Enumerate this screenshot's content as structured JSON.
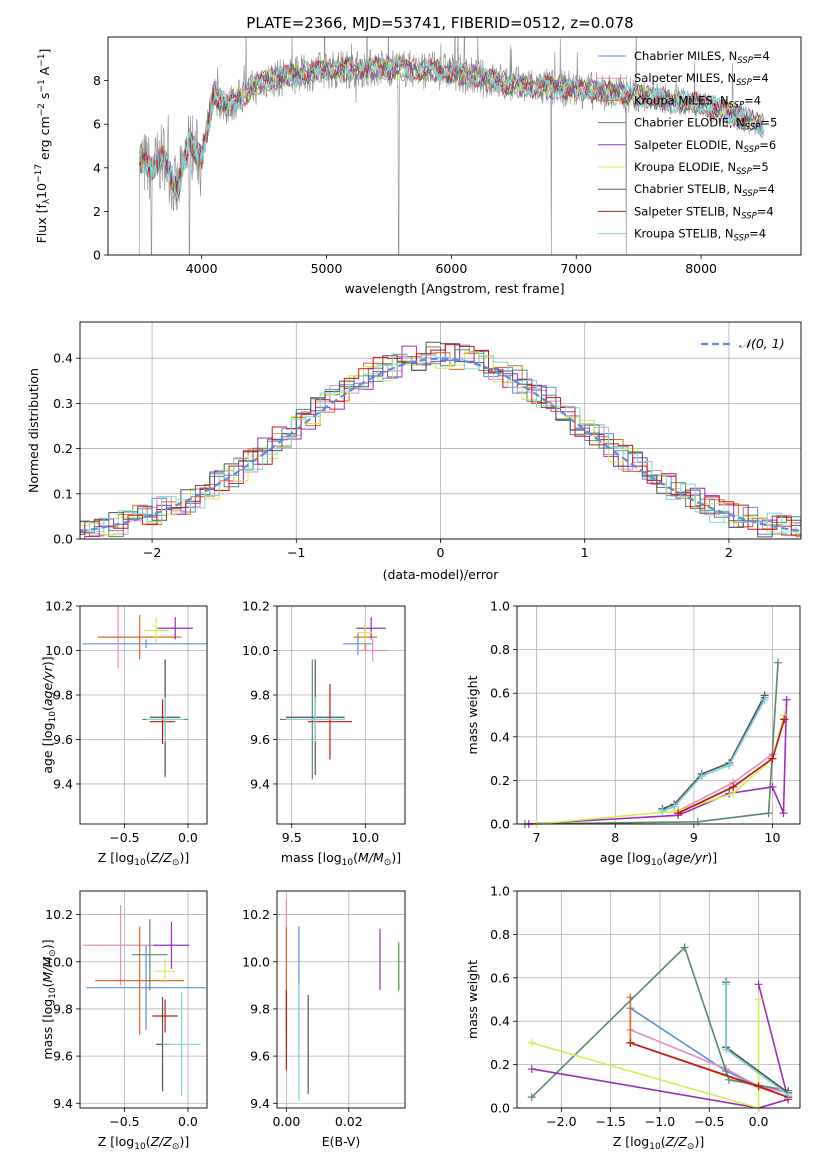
{
  "title": "PLATE=2366, MJD=53741, FIBERID=0512, z=0.078",
  "chart_data": [
    {
      "id": "spectrum",
      "type": "line",
      "title": "PLATE=2366, MJD=53741, FIBERID=0512, z=0.078",
      "xlabel": "wavelength [Angstrom, rest frame]",
      "ylabel": "Flux [f_λ 10^-17 erg cm^-2 s^-1 A^-1]",
      "xlim": [
        3250,
        8800
      ],
      "ylim": [
        0,
        10
      ],
      "xticks": [
        4000,
        5000,
        6000,
        7000,
        8000
      ],
      "yticks": [
        0,
        2,
        4,
        6,
        8
      ],
      "grid": false,
      "legend_position": "top-right",
      "series": [
        {
          "name": "Chabrier MILES, N_SSP=4",
          "color": "#5b8ee0"
        },
        {
          "name": "Salpeter MILES, N_SSP=4",
          "color": "#e08ec0"
        },
        {
          "name": "Kroupa MILES, N_SSP=4",
          "color": "#e06a20"
        },
        {
          "name": "Chabrier ELODIE, N_SSP=5",
          "color": "#5a8a68"
        },
        {
          "name": "Salpeter ELODIE, N_SSP=6",
          "color": "#9a30b8"
        },
        {
          "name": "Kroupa ELODIE, N_SSP=5",
          "color": "#d4ec50"
        },
        {
          "name": "Chabrier STELIB, N_SSP=4",
          "color": "#555555"
        },
        {
          "name": "Salpeter STELIB, N_SSP=4",
          "color": "#c01818"
        },
        {
          "name": "Kroupa STELIB, N_SSP=4",
          "color": "#7fd6d8"
        }
      ],
      "data_envelope": {
        "x": [
          3500,
          3600,
          3700,
          3800,
          3900,
          4000,
          4100,
          4200,
          4500,
          5000,
          5500,
          6000,
          6500,
          7000,
          7400,
          8000,
          8500
        ],
        "y": [
          4.4,
          3.9,
          4.6,
          2.8,
          5.2,
          4.4,
          7.4,
          6.8,
          8.0,
          8.5,
          8.6,
          8.4,
          7.8,
          7.6,
          7.4,
          6.9,
          6.0
        ]
      }
    },
    {
      "id": "residuals",
      "type": "line",
      "xlabel": "(data-model)/error",
      "ylabel": "Normed distribution",
      "xlim": [
        -2.5,
        2.5
      ],
      "ylim": [
        0,
        0.48
      ],
      "xticks": [
        -2,
        -1,
        0,
        1,
        2
      ],
      "yticks": [
        0.0,
        0.1,
        0.2,
        0.3,
        0.4
      ],
      "grid": true,
      "legend_position": "top-right",
      "reference": {
        "name": "𝒩(0, 1)",
        "color": "#5b8ee0"
      }
    },
    {
      "id": "age_vs_Z",
      "type": "scatter",
      "xlabel": "Z [log10(Z/Z⊙)]",
      "ylabel": "age [log10(age/yr)]",
      "xlim": [
        -0.85,
        0.15
      ],
      "ylim": [
        9.22,
        10.2
      ],
      "xticks": [
        -0.5,
        0.0
      ],
      "yticks": [
        9.4,
        9.6,
        9.8,
        10.0,
        10.2
      ],
      "grid": true,
      "points": [
        {
          "x": -0.33,
          "y": 10.03,
          "xerr": 0.5,
          "yerr": 0.02,
          "color": "#5b8ee0"
        },
        {
          "x": -0.55,
          "y": 10.06,
          "xerr": 0.05,
          "yerr": 0.14,
          "color": "#e08ec0"
        },
        {
          "x": -0.38,
          "y": 10.06,
          "xerr": 0.33,
          "yerr": 0.1,
          "color": "#e06a20"
        },
        {
          "x": -0.18,
          "y": 9.69,
          "xerr": 0.18,
          "yerr": 0.26,
          "color": "#5a8a68"
        },
        {
          "x": -0.1,
          "y": 10.1,
          "xerr": 0.14,
          "yerr": 0.05,
          "color": "#9a30b8"
        },
        {
          "x": -0.25,
          "y": 10.09,
          "xerr": 0.1,
          "yerr": 0.06,
          "color": "#d4ec50"
        },
        {
          "x": -0.18,
          "y": 9.7,
          "xerr": 0.12,
          "yerr": 0.26,
          "color": "#555555"
        },
        {
          "x": -0.2,
          "y": 9.68,
          "xerr": 0.1,
          "yerr": 0.1,
          "color": "#c01818"
        },
        {
          "x": -0.18,
          "y": 9.69,
          "xerr": 0.15,
          "yerr": 0.1,
          "color": "#7fd6d8"
        }
      ]
    },
    {
      "id": "age_vs_mass",
      "type": "scatter",
      "xlabel": "mass [log10(M/M⊙)]",
      "ylabel": "",
      "xlim": [
        9.4,
        10.27
      ],
      "ylim": [
        9.22,
        10.2
      ],
      "xticks": [
        9.5,
        10.0
      ],
      "yticks": [
        9.4,
        9.6,
        9.8,
        10.0,
        10.2
      ],
      "grid": true,
      "points": [
        {
          "x": 9.95,
          "y": 10.03,
          "xerr": 0.1,
          "yerr": 0.05,
          "color": "#5b8ee0"
        },
        {
          "x": 10.05,
          "y": 10.0,
          "xerr": 0.1,
          "yerr": 0.05,
          "color": "#e08ec0"
        },
        {
          "x": 10.0,
          "y": 10.06,
          "xerr": 0.08,
          "yerr": 0.06,
          "color": "#e06a20"
        },
        {
          "x": 9.64,
          "y": 9.69,
          "xerr": 0.22,
          "yerr": 0.27,
          "color": "#5a8a68"
        },
        {
          "x": 10.04,
          "y": 10.1,
          "xerr": 0.1,
          "yerr": 0.05,
          "color": "#9a30b8"
        },
        {
          "x": 10.0,
          "y": 10.08,
          "xerr": 0.05,
          "yerr": 0.05,
          "color": "#d4ec50"
        },
        {
          "x": 9.66,
          "y": 9.7,
          "xerr": 0.2,
          "yerr": 0.26,
          "color": "#555555"
        },
        {
          "x": 9.76,
          "y": 9.68,
          "xerr": 0.15,
          "yerr": 0.17,
          "color": "#c01818"
        },
        {
          "x": 9.66,
          "y": 9.69,
          "xerr": 0.2,
          "yerr": 0.1,
          "color": "#7fd6d8"
        }
      ]
    },
    {
      "id": "massweight_vs_age",
      "type": "line",
      "xlabel": "age [log10(age/yr)]",
      "ylabel": "mass weight",
      "xlim": [
        6.75,
        10.35
      ],
      "ylim": [
        0,
        1
      ],
      "xticks": [
        7,
        8,
        9,
        10
      ],
      "yticks": [
        0.0,
        0.2,
        0.4,
        0.6,
        0.8,
        1.0
      ],
      "grid": true,
      "series": [
        {
          "color": "#5b8ee0",
          "x": [
            8.6,
            8.75,
            9.1,
            9.45,
            9.9
          ],
          "y": [
            0.06,
            0.08,
            0.22,
            0.27,
            0.58
          ]
        },
        {
          "color": "#e08ec0",
          "x": [
            8.8,
            9.5,
            10.0
          ],
          "y": [
            0.06,
            0.19,
            0.32
          ]
        },
        {
          "color": "#e06a20",
          "x": [
            8.8,
            9.5,
            10.0,
            10.15
          ],
          "y": [
            0.05,
            0.17,
            0.3,
            0.48
          ]
        },
        {
          "color": "#5a8a68",
          "x": [
            6.85,
            9.05,
            9.95,
            10.07
          ],
          "y": [
            0.0,
            0.01,
            0.05,
            0.74
          ]
        },
        {
          "color": "#9a30b8",
          "x": [
            6.9,
            8.8,
            9.45,
            10.0,
            10.14,
            10.18
          ],
          "y": [
            0.0,
            0.04,
            0.14,
            0.17,
            0.05,
            0.57
          ]
        },
        {
          "color": "#d4ec50",
          "x": [
            7.0,
            8.8,
            9.5,
            10.0,
            10.15
          ],
          "y": [
            0.0,
            0.06,
            0.14,
            0.3,
            0.5
          ]
        },
        {
          "color": "#555555",
          "x": [
            8.6,
            8.75,
            9.1,
            9.45,
            9.9
          ],
          "y": [
            0.07,
            0.09,
            0.23,
            0.28,
            0.59
          ]
        },
        {
          "color": "#c01818",
          "x": [
            8.8,
            9.5,
            10.0,
            10.15
          ],
          "y": [
            0.05,
            0.17,
            0.3,
            0.48
          ]
        },
        {
          "color": "#7fd6d8",
          "x": [
            8.6,
            8.75,
            9.1,
            9.45,
            9.9
          ],
          "y": [
            0.06,
            0.08,
            0.22,
            0.27,
            0.57
          ]
        }
      ]
    },
    {
      "id": "mass_vs_Z",
      "type": "scatter",
      "xlabel": "Z [log10(Z/Z⊙)]",
      "ylabel": "mass [log10(M/M⊙)]",
      "xlim": [
        -0.85,
        0.15
      ],
      "ylim": [
        9.38,
        10.3
      ],
      "xticks": [
        -0.5,
        0.0
      ],
      "yticks": [
        9.4,
        9.6,
        9.8,
        10.0,
        10.2
      ],
      "grid": true,
      "points": [
        {
          "x": -0.33,
          "y": 9.89,
          "xerr": 0.47,
          "yerr": 0.18,
          "color": "#5b8ee0"
        },
        {
          "x": -0.53,
          "y": 10.07,
          "xerr": 0.3,
          "yerr": 0.17,
          "color": "#e08ec0"
        },
        {
          "x": -0.38,
          "y": 9.92,
          "xerr": 0.35,
          "yerr": 0.23,
          "color": "#e06a20"
        },
        {
          "x": -0.3,
          "y": 10.03,
          "xerr": 0.14,
          "yerr": 0.15,
          "color": "#5a8a68"
        },
        {
          "x": -0.13,
          "y": 10.07,
          "xerr": 0.14,
          "yerr": 0.1,
          "color": "#9a30b8"
        },
        {
          "x": -0.18,
          "y": 9.96,
          "xerr": 0.08,
          "yerr": 0.05,
          "color": "#d4ec50"
        },
        {
          "x": -0.2,
          "y": 9.65,
          "xerr": 0.05,
          "yerr": 0.2,
          "color": "#555555"
        },
        {
          "x": -0.18,
          "y": 9.77,
          "xerr": 0.1,
          "yerr": 0.07,
          "color": "#c01818"
        },
        {
          "x": -0.05,
          "y": 9.65,
          "xerr": 0.15,
          "yerr": 0.22,
          "color": "#7fd6d8"
        }
      ]
    },
    {
      "id": "mass_vs_EBV",
      "type": "scatter",
      "xlabel": "E(B-V)",
      "ylabel": "",
      "xlim": [
        -0.003,
        0.038
      ],
      "ylim": [
        9.38,
        10.3
      ],
      "xticks": [
        0.0,
        0.02
      ],
      "yticks": [
        9.4,
        9.6,
        9.8,
        10.0,
        10.2
      ],
      "grid": true,
      "points": [
        {
          "x": 0.0,
          "y": 10.08,
          "yerr": 0.18,
          "color": "#e08ec0"
        },
        {
          "x": 0.0,
          "y": 9.92,
          "yerr": 0.23,
          "color": "#e06a20"
        },
        {
          "x": 0.0,
          "y": 9.71,
          "yerr": 0.17,
          "color": "#c01818"
        },
        {
          "x": 0.004,
          "y": 9.89,
          "yerr": 0.26,
          "color": "#5b8ee0"
        },
        {
          "x": 0.004,
          "y": 9.66,
          "yerr": 0.25,
          "color": "#7fd6d8"
        },
        {
          "x": 0.007,
          "y": 9.65,
          "yerr": 0.21,
          "color": "#555555"
        },
        {
          "x": 0.03,
          "y": 10.01,
          "yerr": 0.13,
          "color": "#9a30b8"
        },
        {
          "x": 0.036,
          "y": 9.98,
          "yerr": 0.11,
          "color": "#d4ec50"
        },
        {
          "x": 0.036,
          "y": 9.98,
          "yerr": 0.1,
          "color": "#5a8a68"
        }
      ]
    },
    {
      "id": "massweight_vs_Z",
      "type": "line",
      "xlabel": "Z [log10(Z/Z⊙)]",
      "ylabel": "mass weight",
      "xlim": [
        -2.45,
        0.42
      ],
      "ylim": [
        0,
        1
      ],
      "xticks": [
        -2.0,
        -1.5,
        -1.0,
        -0.5,
        0.0
      ],
      "yticks": [
        0.0,
        0.2,
        0.4,
        0.6,
        0.8,
        1.0
      ],
      "grid": true,
      "series": [
        {
          "color": "#5b8ee0",
          "x": [
            -1.3,
            -0.33,
            0.0,
            0.3
          ],
          "y": [
            0.46,
            0.17,
            0.1,
            0.07
          ]
        },
        {
          "color": "#e08ec0",
          "x": [
            -1.3,
            -0.33,
            0.0,
            0.3
          ],
          "y": [
            0.36,
            0.18,
            0.1,
            0.07
          ]
        },
        {
          "color": "#e06a20",
          "x": [
            -1.3,
            -1.3,
            0.3,
            0.0
          ],
          "y": [
            0.51,
            0.3,
            0.05,
            0.1
          ]
        },
        {
          "color": "#5a8a68",
          "x": [
            -2.3,
            -0.75,
            -0.3,
            0.3
          ],
          "y": [
            0.05,
            0.74,
            0.13,
            0.08
          ]
        },
        {
          "color": "#9a30b8",
          "x": [
            -2.3,
            0.0,
            0.3,
            0.0
          ],
          "y": [
            0.18,
            0.0,
            0.04,
            0.57
          ]
        },
        {
          "color": "#d4ec50",
          "x": [
            -2.3,
            0.0,
            0.0
          ],
          "y": [
            0.3,
            0.0,
            0.5
          ]
        },
        {
          "color": "#555555",
          "x": [
            -0.33,
            -0.33,
            0.3
          ],
          "y": [
            0.58,
            0.28,
            0.07
          ]
        },
        {
          "color": "#c01818",
          "x": [
            -1.3,
            0.0,
            0.3
          ],
          "y": [
            0.3,
            0.1,
            0.05
          ]
        },
        {
          "color": "#7fd6d8",
          "x": [
            -0.33,
            -0.33,
            0.3
          ],
          "y": [
            0.57,
            0.27,
            0.06
          ]
        }
      ]
    }
  ]
}
